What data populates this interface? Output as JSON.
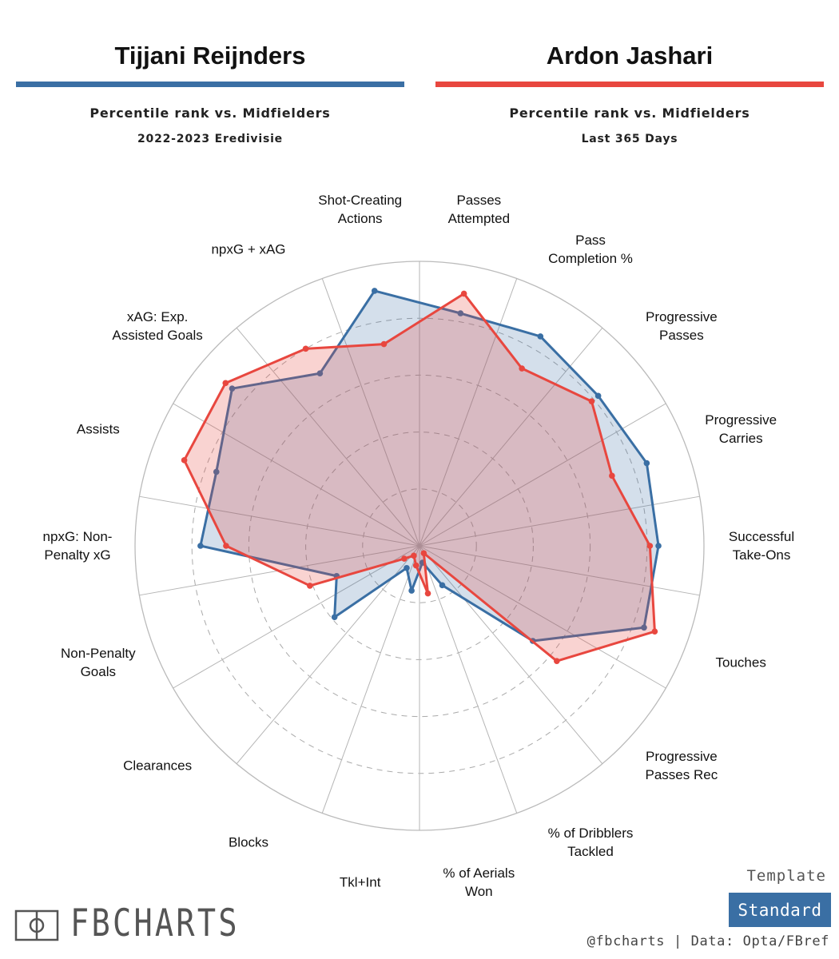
{
  "players": [
    {
      "name": "Tijjani Reijnders",
      "color": "#3a6fa4",
      "subtitle": "Percentile rank vs. Midfielders",
      "season": "2022-2023 Eredivisie"
    },
    {
      "name": "Ardon Jashari",
      "color": "#e8473f",
      "subtitle": "Percentile rank vs. Midfielders",
      "season": "Last 365 Days"
    }
  ],
  "chart_data": {
    "type": "radar",
    "title": "",
    "range": [
      0,
      100
    ],
    "rings": [
      20,
      40,
      60,
      80,
      100
    ],
    "categories": [
      [
        "Passes",
        "Attempted"
      ],
      [
        "Pass",
        "Completion %"
      ],
      [
        "Progressive",
        "Passes"
      ],
      [
        "Progressive",
        "Carries"
      ],
      [
        "Successful",
        "Take-Ons"
      ],
      [
        "Touches"
      ],
      [
        "Progressive",
        "Passes Rec"
      ],
      [
        "% of Dribblers",
        "Tackled"
      ],
      [
        "% of Aerials",
        "Won"
      ],
      [
        "Tkl+Int"
      ],
      [
        "Blocks"
      ],
      [
        "Clearances"
      ],
      [
        "Non-Penalty",
        "Goals"
      ],
      [
        "npxG: Non-",
        "Penalty xG"
      ],
      [
        "Assists"
      ],
      [
        "xAG: Exp.",
        "Assisted Goals"
      ],
      [
        "npxG + xAG"
      ],
      [
        "Shot-Creating",
        "Actions"
      ]
    ],
    "series": [
      {
        "name": "Tijjani Reijnders",
        "values": [
          83,
          85,
          82,
          85,
          84,
          84,
          52,
          16,
          6,
          16,
          9,
          39,
          31,
          77,
          76,
          86,
          70,
          91
        ]
      },
      {
        "name": "Ardon Jashari",
        "values": [
          90,
          72,
          79,
          72,
          81,
          88,
          63,
          3,
          17,
          7,
          4,
          7,
          41,
          68,
          88,
          89,
          80,
          72
        ]
      }
    ]
  },
  "footer": {
    "logo_text": "FBCHARTS",
    "template_label": "Template",
    "template_value": "Standard",
    "credit": "@fbcharts | Data: Opta/FBref"
  }
}
